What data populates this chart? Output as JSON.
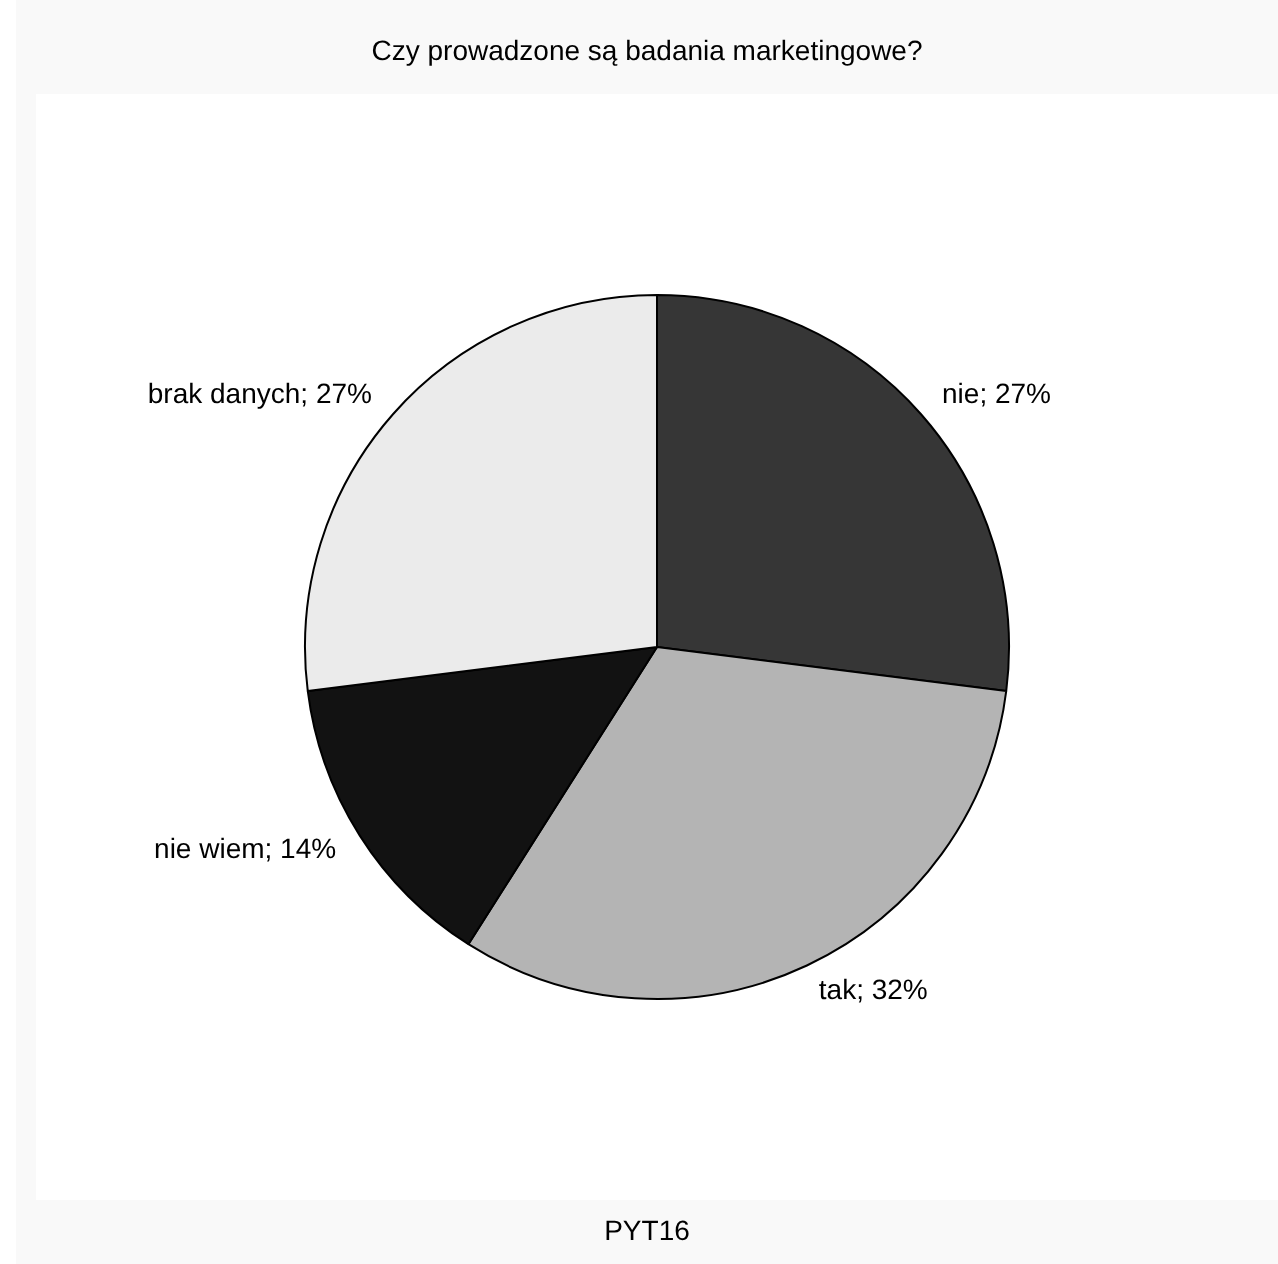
{
  "chart_data": {
    "type": "pie",
    "title": "Czy prowadzone są badania marketingowe?",
    "categories": [
      "nie",
      "tak",
      "nie wiem",
      "brak danych"
    ],
    "values": [
      27,
      32,
      14,
      27
    ],
    "colors": [
      "#363636",
      "#b4b4b4",
      "#121212",
      "#ebebeb"
    ],
    "value_labels": [
      "27%",
      "32%",
      "14%",
      "27%"
    ],
    "legend": false,
    "annotations": [
      "PYT16"
    ]
  }
}
